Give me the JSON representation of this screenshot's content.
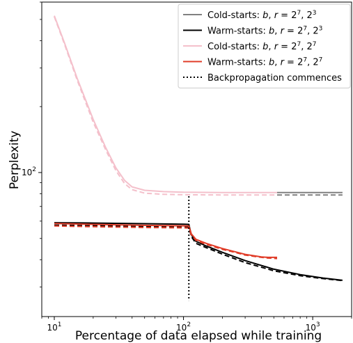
{
  "chart_data": {
    "type": "line",
    "title": "",
    "xlabel": "Percentage of data elapsed while training",
    "ylabel": "Perplexity",
    "xscale": "log",
    "yscale": "log",
    "xlim": [
      8,
      2000
    ],
    "ylim": [
      22,
      600
    ],
    "x_ticks": [
      {
        "value": 10,
        "base": "10",
        "exp": "1"
      },
      {
        "value": 100,
        "base": "10",
        "exp": "2"
      },
      {
        "value": 1000,
        "base": "10",
        "exp": "3"
      }
    ],
    "y_ticks": [
      {
        "value": 100,
        "base": "10",
        "exp": "2"
      }
    ],
    "grid": false,
    "legend_placement": "top-right",
    "backprop_x": 110,
    "backprop_y_range": [
      26,
      78
    ],
    "series": [
      {
        "name": "Cold-starts: b, r = 2^7, 2^3",
        "legend_html": "Cold-starts: <tspan font-style='italic'>b</tspan>, <tspan font-style='italic'>r</tspan> = 2<tspan baseline-shift='super' font-size='9'>7</tspan>, 2<tspan baseline-shift='super' font-size='9'>3</tspan>",
        "color": "#808080",
        "style": "solid",
        "x": [
          530,
          1700
        ],
        "y": [
          81,
          81
        ]
      },
      {
        "name": "Cold-starts: b, r = 2^7, 2^3 (dashed)",
        "color": "#808080",
        "style": "dashed",
        "legend": false,
        "x": [
          530,
          1700
        ],
        "y": [
          79,
          79
        ]
      },
      {
        "name": "Warm-starts: b, r = 2^7, 2^3",
        "legend_html": "Warm-starts: <tspan font-style='italic'>b</tspan>, <tspan font-style='italic'>r</tspan> = 2<tspan baseline-shift='super' font-size='9'>7</tspan>, 2<tspan baseline-shift='super' font-size='9'>3</tspan>",
        "color": "#000000",
        "style": "solid",
        "x": [
          10,
          20,
          50,
          100,
          110,
          115,
          125,
          150,
          200,
          300,
          500,
          800,
          1200,
          1700
        ],
        "y": [
          59,
          58.8,
          58.4,
          58.1,
          58,
          52,
          48.5,
          46.2,
          43.2,
          39.6,
          36.2,
          34.2,
          33,
          32.2
        ]
      },
      {
        "name": "Warm-starts: b, r = 2^7, 2^3 (dashed)",
        "color": "#000000",
        "style": "dashed",
        "legend": false,
        "x": [
          10,
          20,
          50,
          100,
          110,
          115,
          125,
          150,
          200,
          300,
          500,
          800,
          1200,
          1700
        ],
        "y": [
          57.5,
          57.2,
          56.8,
          56.6,
          56.5,
          51,
          47.5,
          45.4,
          42.4,
          38.8,
          35.6,
          33.8,
          32.8,
          32.1
        ]
      },
      {
        "name": "Cold-starts: b, r = 2^7, 2^7",
        "legend_html": "Cold-starts: <tspan font-style='italic'>b</tspan>, <tspan font-style='italic'>r</tspan> = 2<tspan baseline-shift='super' font-size='9'>7</tspan>, 2<tspan baseline-shift='super' font-size='9'>7</tspan>",
        "color": "#f4c0cb",
        "style": "solid",
        "x": [
          10,
          12,
          15,
          20,
          25,
          30,
          35,
          40,
          50,
          70,
          100,
          200,
          530
        ],
        "y": [
          520,
          390,
          270,
          175,
          130,
          105,
          92,
          86,
          83,
          81.8,
          81.3,
          81,
          81
        ]
      },
      {
        "name": "Cold-starts: b, r = 2^7, 2^7 (dashed)",
        "color": "#f4c0cb",
        "style": "dashed",
        "legend": false,
        "x": [
          10,
          12,
          15,
          20,
          25,
          30,
          35,
          40,
          50,
          70,
          100,
          200,
          530
        ],
        "y": [
          515,
          385,
          265,
          170,
          127,
          102,
          89,
          83.5,
          80.5,
          79.5,
          79.2,
          79,
          79
        ]
      },
      {
        "name": "Warm-starts: b, r = 2^7, 2^7",
        "legend_html": "Warm-starts: <tspan font-style='italic'>b</tspan>, <tspan font-style='italic'>r</tspan> = 2<tspan baseline-shift='super' font-size='9'>7</tspan>, 2<tspan baseline-shift='super' font-size='9'>7</tspan>",
        "color": "#e03c28",
        "style": "solid",
        "x": [
          10,
          20,
          50,
          100,
          110,
          115,
          125,
          150,
          200,
          250,
          300,
          400,
          450,
          530
        ],
        "y": [
          58.5,
          58,
          57.4,
          57.1,
          57,
          52.5,
          49.5,
          47.5,
          45,
          43.5,
          42.3,
          41.2,
          41,
          41
        ]
      },
      {
        "name": "Warm-starts: b, r = 2^7, 2^7 (dashed)",
        "color": "#e03c28",
        "style": "dashed",
        "legend": false,
        "x": [
          10,
          20,
          50,
          100,
          110,
          115,
          125,
          150,
          200,
          250,
          300,
          400,
          450,
          530
        ],
        "y": [
          57,
          56.6,
          56.1,
          55.9,
          55.8,
          51.8,
          49,
          47,
          44.6,
          43.2,
          42,
          41,
          40.7,
          40.5
        ]
      },
      {
        "name": "Backpropagation commences",
        "legend_html": "Backpropagation commences",
        "color": "#000000",
        "style": "dotted",
        "x": [],
        "y": []
      }
    ]
  }
}
